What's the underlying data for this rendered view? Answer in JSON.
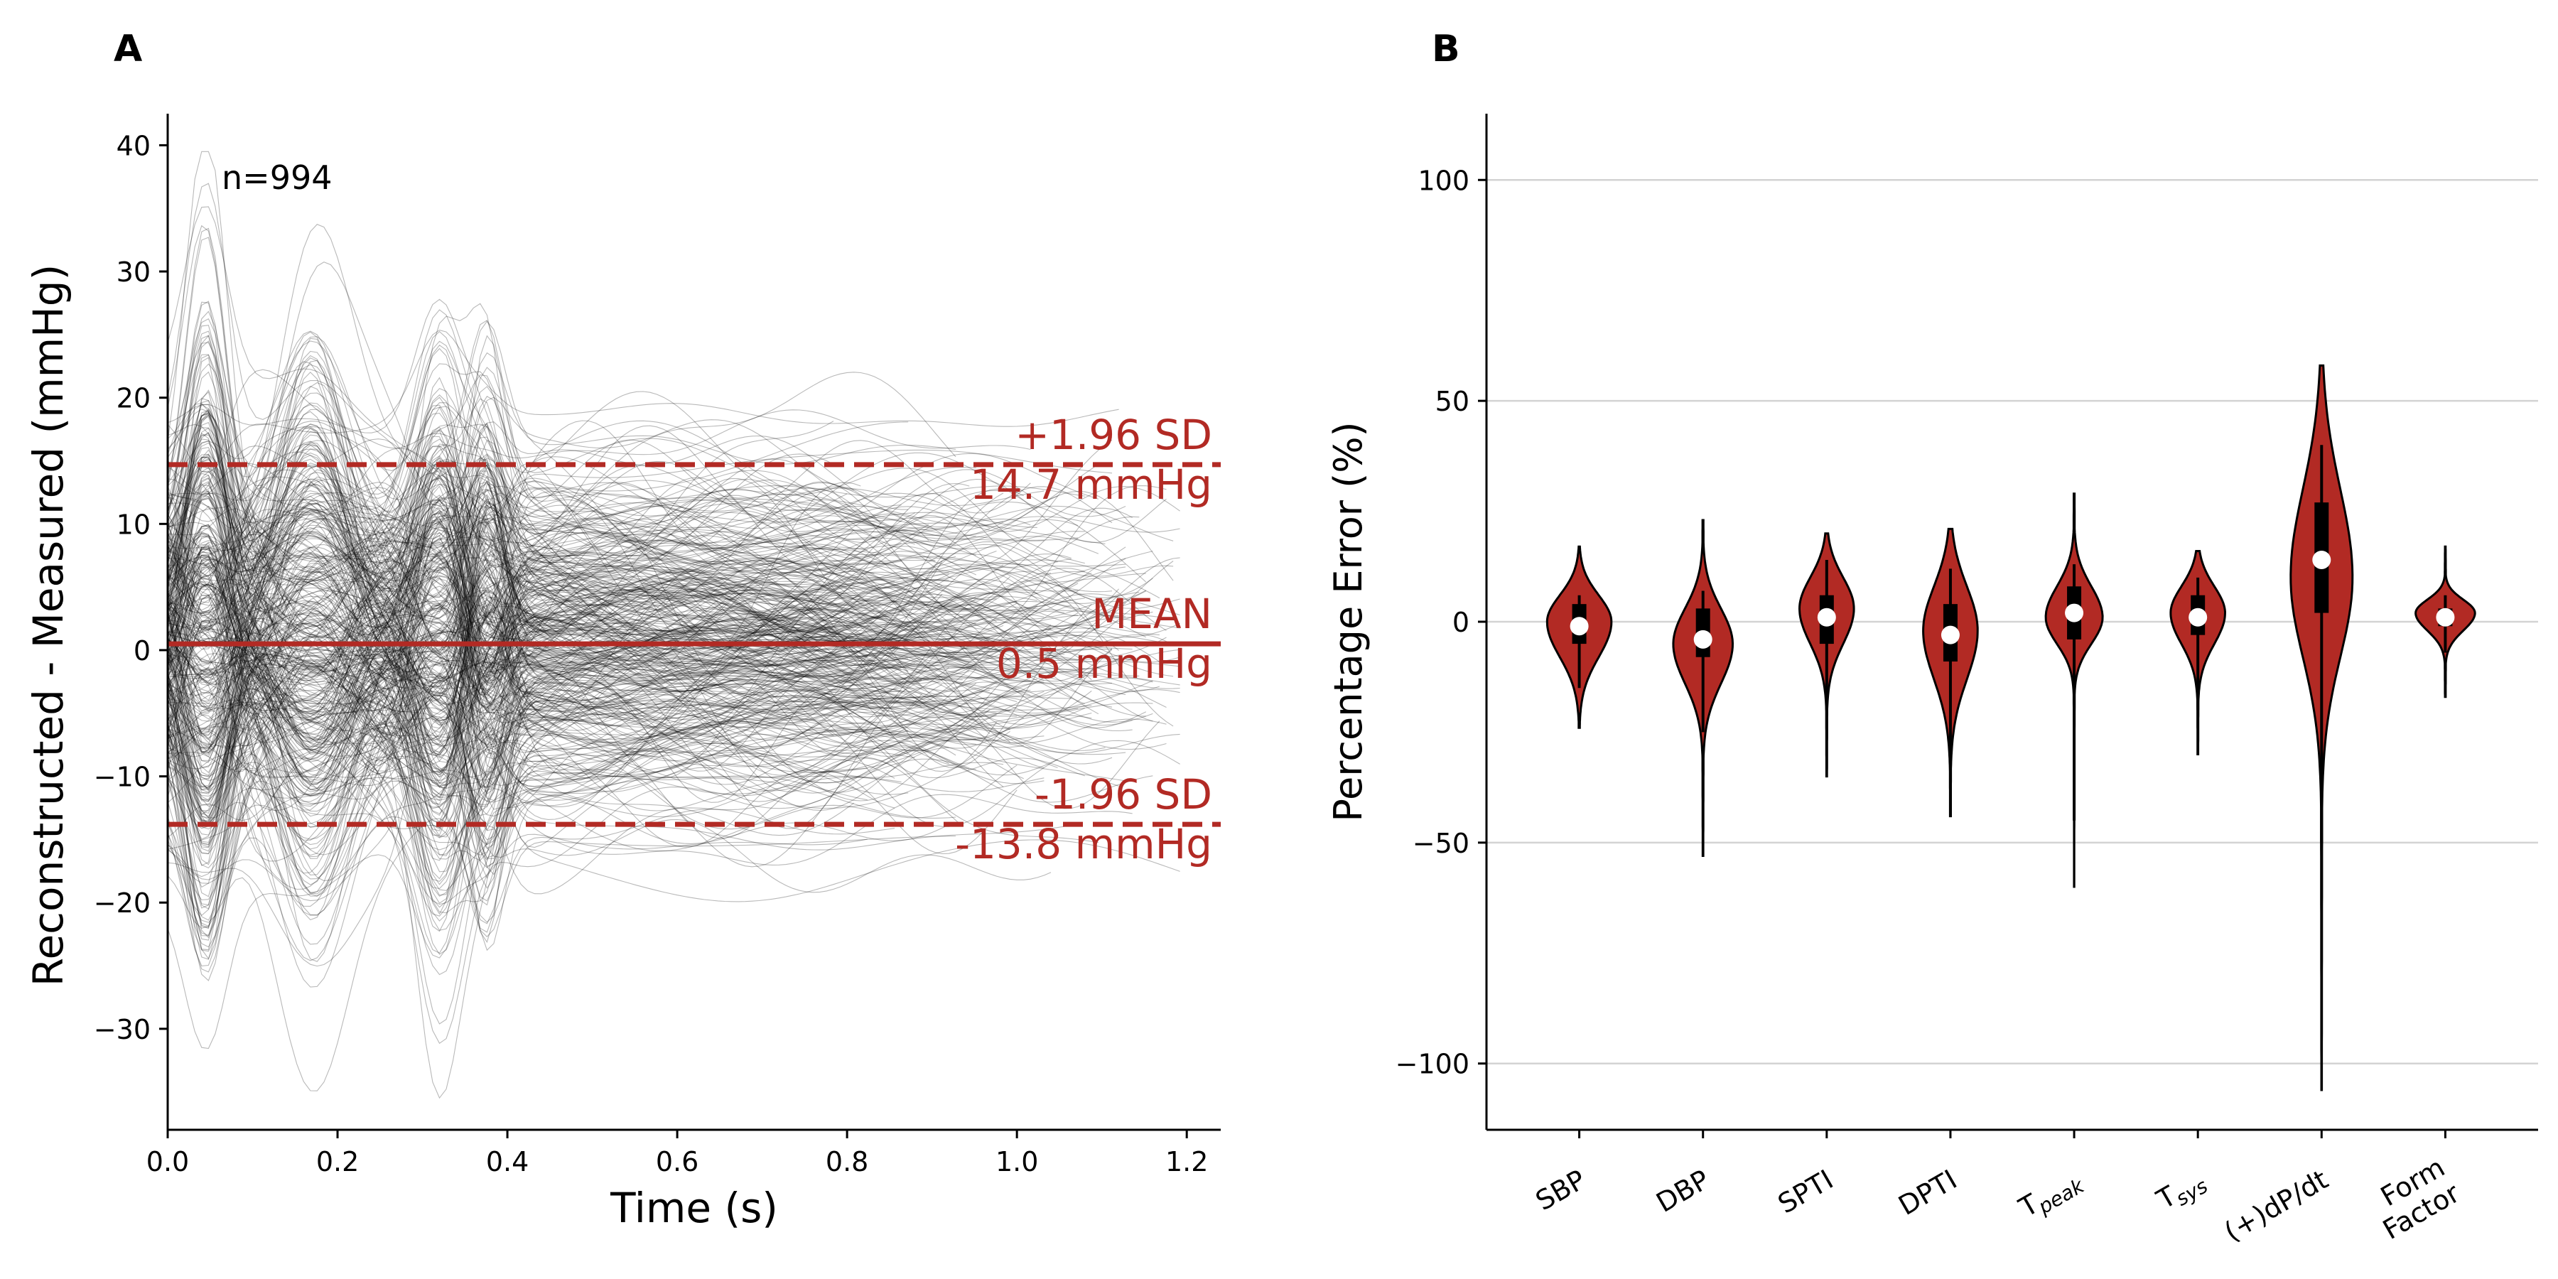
{
  "chart_data": [
    {
      "panel_label": "A",
      "type": "line",
      "title": "",
      "xlabel": "Time (s)",
      "ylabel": "Reconstructed - Measured (mmHg)",
      "xlim": [
        0.0,
        1.24
      ],
      "ylim": [
        -38,
        42.5
      ],
      "xticks": [
        0.0,
        0.2,
        0.4,
        0.6,
        0.8,
        1.0,
        1.2
      ],
      "xtick_labels": [
        "0.0",
        "0.2",
        "0.4",
        "0.6",
        "0.8",
        "1.0",
        "1.2"
      ],
      "yticks": [
        40,
        30,
        20,
        10,
        0,
        -10,
        -20,
        -30
      ],
      "ytick_labels": [
        "40",
        "30",
        "20",
        "10",
        "0",
        "−10",
        "−20",
        "−30"
      ],
      "grid": false,
      "n_label": "n=994",
      "n_traces": 994,
      "reference_lines": [
        {
          "name": "upper-loa",
          "y": 14.7,
          "style": "dashed",
          "label": "+1.96 SD",
          "value_label": "14.7 mmHg"
        },
        {
          "name": "mean",
          "y": 0.5,
          "style": "solid",
          "label": "MEAN",
          "value_label": "0.5 mmHg"
        },
        {
          "name": "lower-loa",
          "y": -13.8,
          "style": "dashed",
          "label": "-1.96 SD",
          "value_label": "-13.8 mmHg"
        }
      ]
    },
    {
      "panel_label": "B",
      "type": "violin",
      "title": "",
      "xlabel": "",
      "ylabel": "Percentage Error (%)",
      "ylim": [
        -115,
        115
      ],
      "yticks": [
        100,
        50,
        0,
        -50,
        -100
      ],
      "ytick_labels": [
        "100",
        "50",
        "0",
        "−50",
        "−100"
      ],
      "grid": "horizontal",
      "categories": [
        {
          "label": "SBP"
        },
        {
          "label": "DBP"
        },
        {
          "label": "SPTI"
        },
        {
          "label": "DPTI"
        },
        {
          "label": "T",
          "sub": "peak"
        },
        {
          "label": "T",
          "sub": "sys"
        },
        {
          "label": "(+)dP/dt"
        },
        {
          "label": "Form",
          "label2": "Factor"
        }
      ],
      "series": [
        {
          "name": "SBP",
          "min": -24,
          "max": 17,
          "median": -1,
          "q1": -5,
          "q3": 4,
          "whisker_low": -15,
          "whisker_high": 6,
          "mode": 0,
          "max_width": 0.26,
          "spread_low": 8,
          "spread_high": 6
        },
        {
          "name": "DBP",
          "min": -53,
          "max": 23,
          "median": -4,
          "q1": -8,
          "q3": 3,
          "whisker_low": -25,
          "whisker_high": 7,
          "mode": -5,
          "max_width": 0.24,
          "spread_low": 9,
          "spread_high": 8
        },
        {
          "name": "SPTI",
          "min": -35,
          "max": 20,
          "median": 1,
          "q1": -5,
          "q3": 6,
          "whisker_low": -20,
          "whisker_high": 14,
          "mode": 3,
          "max_width": 0.22,
          "spread_low": 8,
          "spread_high": 7
        },
        {
          "name": "DPTI",
          "min": -44,
          "max": 21,
          "median": -3,
          "q1": -9,
          "q3": 4,
          "whisker_low": -30,
          "whisker_high": 12,
          "mode": -2,
          "max_width": 0.22,
          "spread_low": 11,
          "spread_high": 10
        },
        {
          "name": "Tpeak",
          "min": -60,
          "max": 29,
          "median": 2,
          "q1": -4,
          "q3": 8,
          "whisker_low": -45,
          "whisker_high": 13,
          "mode": 1,
          "max_width": 0.23,
          "spread_low": 6,
          "spread_high": 7
        },
        {
          "name": "Tsys",
          "min": -30,
          "max": 16,
          "median": 1,
          "q1": -3,
          "q3": 6,
          "whisker_low": -20,
          "whisker_high": 10,
          "mode": 2,
          "max_width": 0.22,
          "spread_low": 7,
          "spread_high": 6
        },
        {
          "name": "(+)dP/dt",
          "min": -106,
          "max": 58,
          "median": 14,
          "q1": 2,
          "q3": 27,
          "whisker_low": -50,
          "whisker_high": 40,
          "mode": 10,
          "max_width": 0.25,
          "spread_low": 18,
          "spread_high": 20
        },
        {
          "name": "Form Factor",
          "min": -17,
          "max": 17,
          "median": 1,
          "q1": -1,
          "q3": 3,
          "whisker_low": -7,
          "whisker_high": 6,
          "mode": 2,
          "max_width": 0.24,
          "spread_low": 4,
          "spread_high": 3
        }
      ]
    }
  ],
  "colors": {
    "accent": "#b22a24",
    "violin_fill": "#b22a24",
    "trace": "#000000",
    "axis": "#000000",
    "grid": "#d3d3d3",
    "median_dot": "#ffffff"
  }
}
